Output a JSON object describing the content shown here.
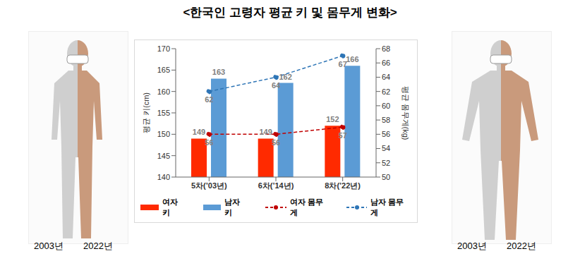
{
  "chart_data": {
    "type": "bar",
    "title": "<한국인 고령자 평균 키 및 몸무게 변화>",
    "categories": [
      "5차(’03년)",
      "6차(’14년)",
      "8차(’22년)"
    ],
    "series": [
      {
        "name": "여자 키",
        "type": "bar",
        "color": "#ff2a00",
        "values": [
          149,
          149,
          152
        ]
      },
      {
        "name": "남자 키",
        "type": "bar",
        "color": "#5b9bd5",
        "values": [
          163,
          162,
          166
        ]
      },
      {
        "name": "여자 몸무게",
        "type": "line",
        "axis": "y2",
        "color": "#c00000",
        "marker": "circle",
        "line_style": "dashed",
        "values": [
          56,
          56,
          57
        ]
      },
      {
        "name": "남자 몸무게",
        "type": "line",
        "axis": "y2",
        "color": "#2e75b6",
        "marker": "circle",
        "line_style": "dashed",
        "values": [
          62,
          64,
          67
        ]
      }
    ],
    "y_label": "평균 키(cm)",
    "y2_label": "평균 몸무게(kg)",
    "ylim": [
      140,
      170
    ],
    "yticks": [
      140,
      145,
      150,
      155,
      160,
      165,
      170
    ],
    "y2lim": [
      50,
      68
    ],
    "y2ticks": [
      50,
      52,
      54,
      56,
      58,
      60,
      62,
      64,
      66,
      68
    ],
    "grid": false,
    "legend": "bottom",
    "data_labels": true,
    "annotations": [
      "2003년",
      "2022년",
      "2003년",
      "2022년"
    ]
  }
}
